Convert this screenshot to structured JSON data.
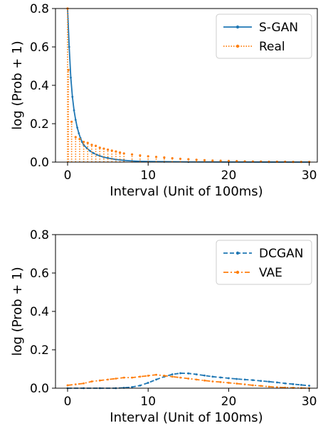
{
  "chart_data": [
    {
      "type": "line",
      "xlabel": "Interval (Unit of 100ms)",
      "ylabel": "log (Prob + 1)",
      "xlim": [
        -1.5,
        31
      ],
      "ylim": [
        0,
        0.8
      ],
      "xticks": [
        0,
        10,
        20,
        30
      ],
      "xtick_labels": [
        "0",
        "10",
        "20",
        "30"
      ],
      "yticks": [
        0,
        0.2,
        0.4,
        0.6,
        0.8
      ],
      "ytick_labels": [
        "0.0",
        "0.2",
        "0.4",
        "0.6",
        "0.8"
      ],
      "legend_position": "top-right",
      "grid": false,
      "series": [
        {
          "name": "S-GAN",
          "color": "#1f77b4",
          "style": "solid",
          "x": [
            0,
            0.2,
            0.4,
            0.6,
            0.8,
            1.0,
            1.2,
            1.4,
            1.6,
            1.8,
            2.0,
            2.4,
            2.8,
            3.2,
            3.6,
            4.0,
            4.5,
            5.0,
            5.5,
            6.0,
            7.0,
            8.0,
            9.0,
            10.0,
            12.0,
            15.0,
            20.0,
            25.0,
            30.0
          ],
          "y": [
            0.8,
            0.6,
            0.44,
            0.34,
            0.27,
            0.22,
            0.18,
            0.15,
            0.125,
            0.105,
            0.09,
            0.072,
            0.058,
            0.047,
            0.039,
            0.032,
            0.026,
            0.021,
            0.017,
            0.014,
            0.009,
            0.006,
            0.004,
            0.003,
            0.002,
            0.001,
            0.0005,
            0.0002,
            0.0001
          ]
        },
        {
          "name": "Real",
          "color": "#ff7f0e",
          "style": "dotted-spikes",
          "x": [
            0,
            0.1,
            0.5,
            1,
            1.5,
            2,
            2.5,
            3,
            3.5,
            4,
            4.5,
            5,
            5.5,
            6,
            6.5,
            7,
            8,
            9,
            10,
            11,
            12,
            13,
            14,
            15,
            16,
            17,
            18,
            19,
            20,
            21,
            22,
            23,
            24,
            25,
            26,
            27,
            28,
            29,
            30
          ],
          "y": [
            0.8,
            0.48,
            0.21,
            0.13,
            0.12,
            0.105,
            0.1,
            0.09,
            0.085,
            0.075,
            0.07,
            0.065,
            0.06,
            0.055,
            0.05,
            0.045,
            0.04,
            0.035,
            0.03,
            0.027,
            0.024,
            0.02,
            0.017,
            0.015,
            0.012,
            0.01,
            0.008,
            0.007,
            0.006,
            0.005,
            0.004,
            0.003,
            0.003,
            0.002,
            0.002,
            0.002,
            0.001,
            0.001,
            0.001
          ]
        }
      ]
    },
    {
      "type": "line",
      "xlabel": "Interval (Unit of 100ms)",
      "ylabel": "log (Prob + 1)",
      "xlim": [
        -1.5,
        31
      ],
      "ylim": [
        0,
        0.8
      ],
      "xticks": [
        0,
        10,
        20,
        30
      ],
      "xtick_labels": [
        "0",
        "10",
        "20",
        "30"
      ],
      "yticks": [
        0,
        0.2,
        0.4,
        0.6,
        0.8
      ],
      "ytick_labels": [
        "0.0",
        "0.2",
        "0.4",
        "0.6",
        "0.8"
      ],
      "legend_position": "top-right",
      "grid": false,
      "series": [
        {
          "name": "DCGAN",
          "color": "#1f77b4",
          "style": "dashed",
          "x": [
            0,
            2,
            4,
            6,
            7,
            8,
            9,
            10,
            11,
            12,
            13,
            14,
            15,
            16,
            17,
            18,
            19,
            20,
            21,
            22,
            23,
            24,
            25,
            26,
            27,
            28,
            29,
            30
          ],
          "y": [
            0.0,
            0.0,
            0.0,
            0.0,
            0.002,
            0.006,
            0.014,
            0.028,
            0.045,
            0.06,
            0.072,
            0.078,
            0.077,
            0.072,
            0.066,
            0.06,
            0.056,
            0.052,
            0.048,
            0.045,
            0.042,
            0.038,
            0.034,
            0.03,
            0.025,
            0.021,
            0.017,
            0.013
          ]
        },
        {
          "name": "VAE",
          "color": "#ff7f0e",
          "style": "dashdot",
          "x": [
            0,
            1,
            2,
            3,
            4,
            5,
            6,
            7,
            8,
            9,
            10,
            11,
            12,
            13,
            14,
            15,
            16,
            17,
            18,
            19,
            20,
            21,
            22,
            23,
            24,
            25,
            26,
            27,
            28,
            29,
            30
          ],
          "y": [
            0.015,
            0.02,
            0.025,
            0.035,
            0.04,
            0.045,
            0.05,
            0.055,
            0.055,
            0.06,
            0.065,
            0.07,
            0.065,
            0.06,
            0.055,
            0.05,
            0.045,
            0.04,
            0.035,
            0.032,
            0.028,
            0.024,
            0.02,
            0.015,
            0.012,
            0.008,
            0.005,
            0.003,
            0.002,
            0.001,
            0.0
          ]
        }
      ]
    }
  ]
}
